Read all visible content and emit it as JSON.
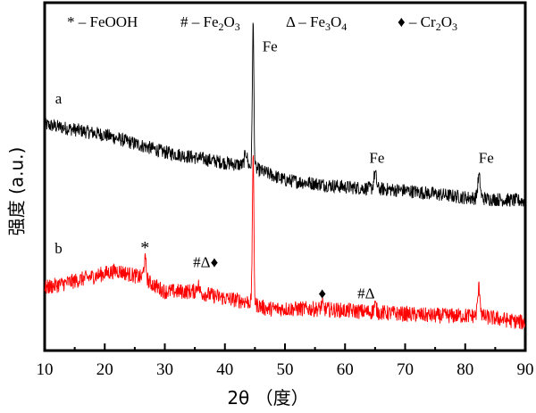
{
  "chart_data": {
    "type": "line",
    "title": "",
    "xlabel": "2θ （度）",
    "ylabel": "强度 (a.u.)",
    "xlim": [
      10,
      90
    ],
    "ylim": [
      0,
      100
    ],
    "xticks": [
      "10",
      "20",
      "30",
      "40",
      "50",
      "60",
      "70",
      "80",
      "90"
    ],
    "y_tick_labels_shown": false,
    "grid": false,
    "legend": {
      "placement": "top",
      "entries": [
        "* – FeOOH",
        "# – Fe2O3",
        "Δ – Fe3O4",
        "♦ – Cr2O3"
      ]
    },
    "series": [
      {
        "name": "a",
        "color": "#000000",
        "baseline": [
          [
            10,
            65
          ],
          [
            20,
            62
          ],
          [
            30,
            57
          ],
          [
            40,
            54
          ],
          [
            44,
            53
          ],
          [
            50,
            49
          ],
          [
            60,
            47
          ],
          [
            70,
            46
          ],
          [
            80,
            44
          ],
          [
            90,
            43
          ]
        ],
        "peaks": [
          [
            43.5,
            57
          ],
          [
            44.7,
            94
          ],
          [
            65.0,
            51
          ],
          [
            82.3,
            50
          ]
        ]
      },
      {
        "name": "b",
        "color": "#ff0000",
        "baseline": [
          [
            10,
            18
          ],
          [
            15,
            20
          ],
          [
            22,
            23
          ],
          [
            26,
            21
          ],
          [
            30,
            17
          ],
          [
            35,
            17
          ],
          [
            40,
            15
          ],
          [
            44,
            14
          ],
          [
            47,
            12
          ],
          [
            55,
            12
          ],
          [
            65,
            11
          ],
          [
            75,
            10
          ],
          [
            82,
            10
          ],
          [
            90,
            8
          ]
        ],
        "peaks": [
          [
            26.7,
            26
          ],
          [
            35.5,
            19
          ],
          [
            44.7,
            56
          ],
          [
            56.2,
            13
          ],
          [
            65.0,
            13
          ],
          [
            82.3,
            18
          ]
        ]
      }
    ],
    "annotations": [
      {
        "text": "a",
        "x": 12.3,
        "y": 71
      },
      {
        "text": "Fe",
        "x": 47.5,
        "y": 86
      },
      {
        "text": "Fe",
        "x": 65.3,
        "y": 54
      },
      {
        "text": "Fe",
        "x": 83.5,
        "y": 54
      },
      {
        "text": "b",
        "x": 12.3,
        "y": 28
      },
      {
        "text": "*",
        "x": 26.7,
        "y": 28
      },
      {
        "text": "#Δ♦",
        "x": 36.8,
        "y": 24
      },
      {
        "text": "♦",
        "x": 56.2,
        "y": 15
      },
      {
        "text": "#Δ",
        "x": 63.5,
        "y": 15
      }
    ]
  },
  "legend_parts": [
    {
      "sym": "* – FeOOH",
      "sub": []
    },
    {
      "sym": "# – Fe",
      "sub": "2",
      "mid": "O",
      "sub2": "3"
    },
    {
      "sym": "Δ – Fe",
      "sub": "3",
      "mid": "O",
      "sub2": "4"
    },
    {
      "sym": "♦ – Cr",
      "sub": "2",
      "mid": "O",
      "sub2": "3"
    }
  ]
}
